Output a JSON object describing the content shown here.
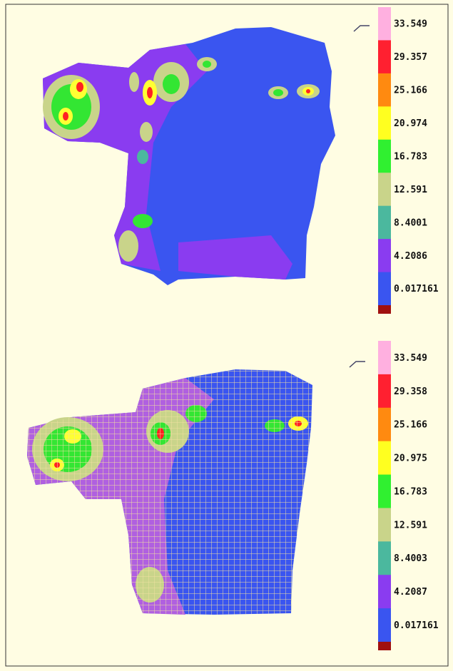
{
  "panels": [
    {
      "legend": [
        "33.549",
        "29.357",
        "25.166",
        "20.974",
        "16.783",
        "12.591",
        "8.4001",
        "4.2086",
        "0.017161"
      ]
    },
    {
      "legend": [
        "33.549",
        "29.358",
        "25.166",
        "20.975",
        "16.783",
        "12.591",
        "8.4003",
        "4.2087",
        "0.017161"
      ]
    }
  ]
}
